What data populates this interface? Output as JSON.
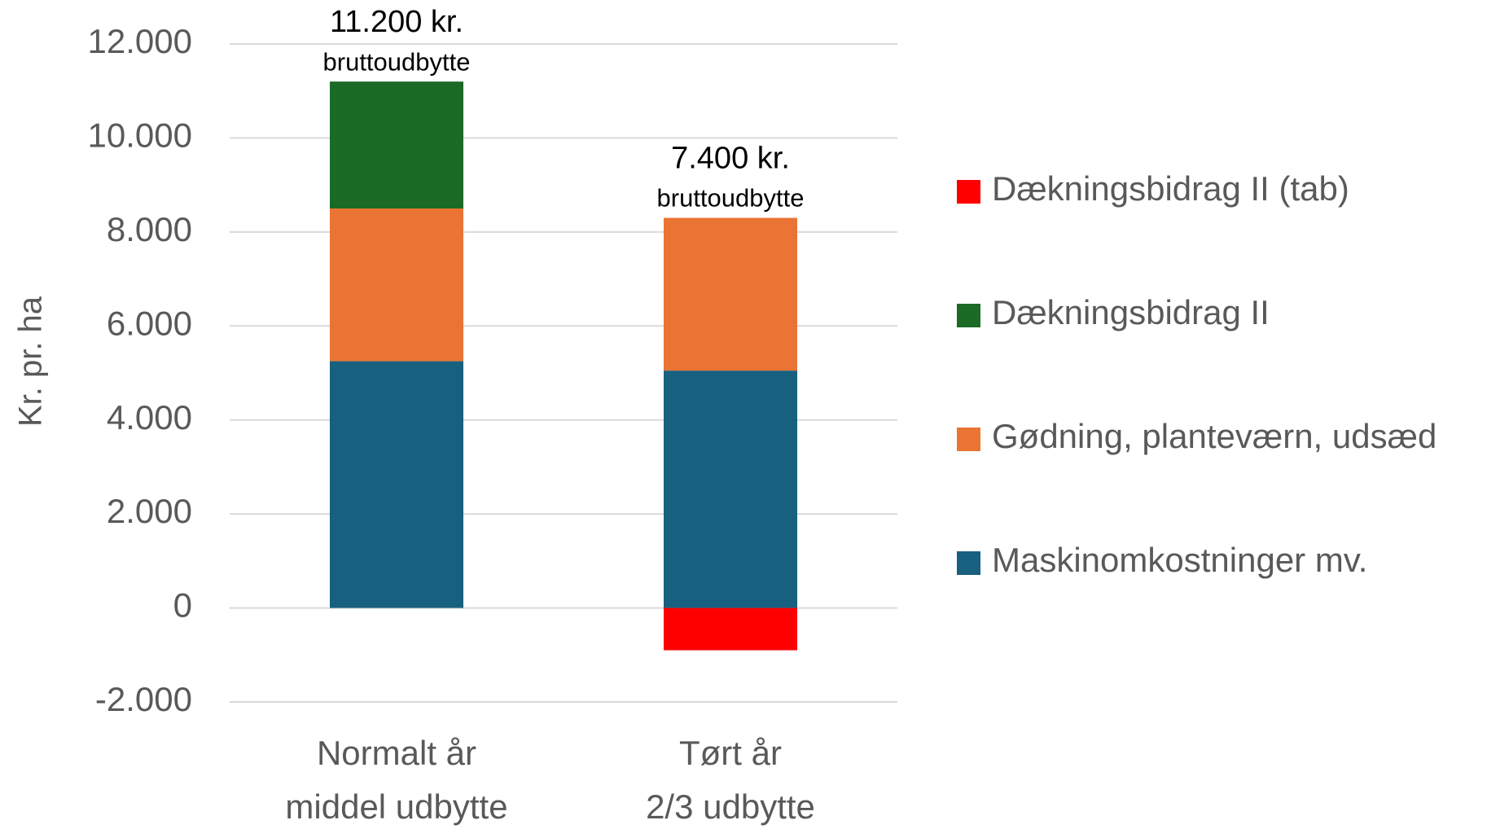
{
  "chart_data": {
    "type": "stacked_bar",
    "y_label": "Kr. pr. ha",
    "categories": [
      [
        "Normalt år",
        "middel udbytte"
      ],
      [
        "Tørt år",
        "2/3 udbytte"
      ]
    ],
    "series": [
      {
        "name": "Maskinomkostninger mv.",
        "color": "#17607f",
        "values": [
          5250,
          5050
        ]
      },
      {
        "name": "Gødning, planteværn, udsæd",
        "color": "#ea7434",
        "values": [
          3250,
          3250
        ]
      },
      {
        "name": "Dækningsbidrag II",
        "color": "#1b6b26",
        "values": [
          2700,
          null
        ]
      },
      {
        "name": "Dækningsbidrag II (tab)",
        "color": "#ff0000",
        "values": [
          null,
          -900
        ]
      }
    ],
    "annotations": [
      {
        "text": "11.200 kr.",
        "subtext": "bruttoudbytte"
      },
      {
        "text": "7.400 kr.",
        "subtext": "bruttoudbytte"
      }
    ],
    "ylim": [
      -2000,
      12000
    ],
    "yticks": [
      {
        "value": -2000,
        "label": "-2.000"
      },
      0,
      {
        "value": 2000,
        "label": "2.000"
      },
      {
        "value": 4000,
        "label": "4.000"
      },
      {
        "value": 6000,
        "label": "6.000"
      },
      {
        "value": 8000,
        "label": "8.000"
      },
      {
        "value": 10000,
        "label": "10.000"
      },
      {
        "value": 12000,
        "label": "12.000"
      }
    ],
    "grid": true,
    "legend": "right"
  }
}
